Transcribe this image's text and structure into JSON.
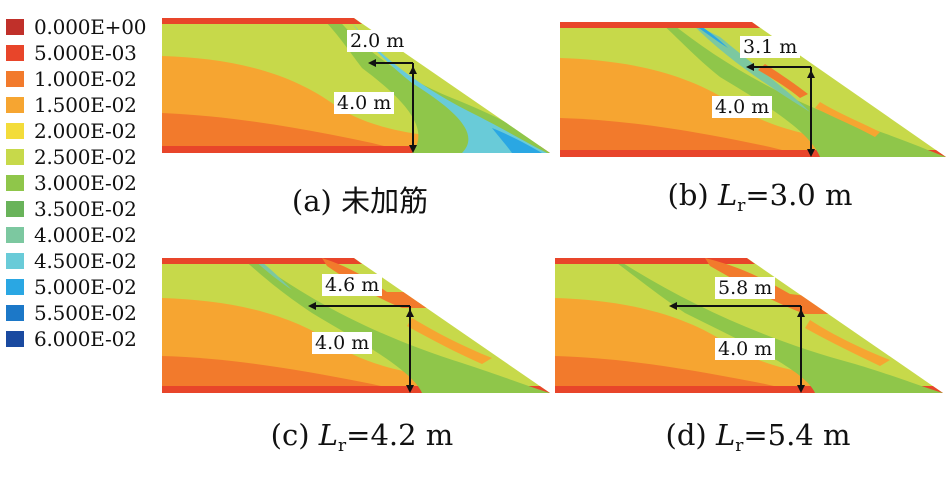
{
  "legend": {
    "items": [
      {
        "label": "0.000E+00",
        "color": "#c0302a"
      },
      {
        "label": "5.000E-03",
        "color": "#e8452a"
      },
      {
        "label": "1.000E-02",
        "color": "#f27a2c"
      },
      {
        "label": "1.500E-02",
        "color": "#f6a531"
      },
      {
        "label": "2.000E-02",
        "color": "#f3dc3a"
      },
      {
        "label": "2.500E-02",
        "color": "#c7d94a"
      },
      {
        "label": "3.000E-02",
        "color": "#8fc64a"
      },
      {
        "label": "3.500E-02",
        "color": "#69b35a"
      },
      {
        "label": "4.000E-02",
        "color": "#7cc8a0"
      },
      {
        "label": "4.500E-02",
        "color": "#69cbd8"
      },
      {
        "label": "5.000E-02",
        "color": "#2aa7e3"
      },
      {
        "label": "5.500E-02",
        "color": "#1c78c8"
      },
      {
        "label": "6.000E-02",
        "color": "#1a4aa0"
      }
    ]
  },
  "panels": [
    {
      "caption_prefix": "(a) ",
      "caption_text": "未加筋",
      "caption_var": "",
      "caption_sub": "",
      "caption_value": "",
      "horizontal_label": "2.0 m",
      "vertical_label": "4.0 m"
    },
    {
      "caption_prefix": "(b) ",
      "caption_text": "",
      "caption_var": "L",
      "caption_sub": "r",
      "caption_value": "=3.0 m",
      "horizontal_label": "3.1 m",
      "vertical_label": "4.0 m"
    },
    {
      "caption_prefix": "(c) ",
      "caption_text": "",
      "caption_var": "L",
      "caption_sub": "r",
      "caption_value": "=4.2 m",
      "horizontal_label": "4.6 m",
      "vertical_label": "4.0 m"
    },
    {
      "caption_prefix": "(d) ",
      "caption_text": "",
      "caption_var": "L",
      "caption_sub": "r",
      "caption_value": "=5.4 m",
      "horizontal_label": "5.8 m",
      "vertical_label": "4.0 m"
    }
  ]
}
